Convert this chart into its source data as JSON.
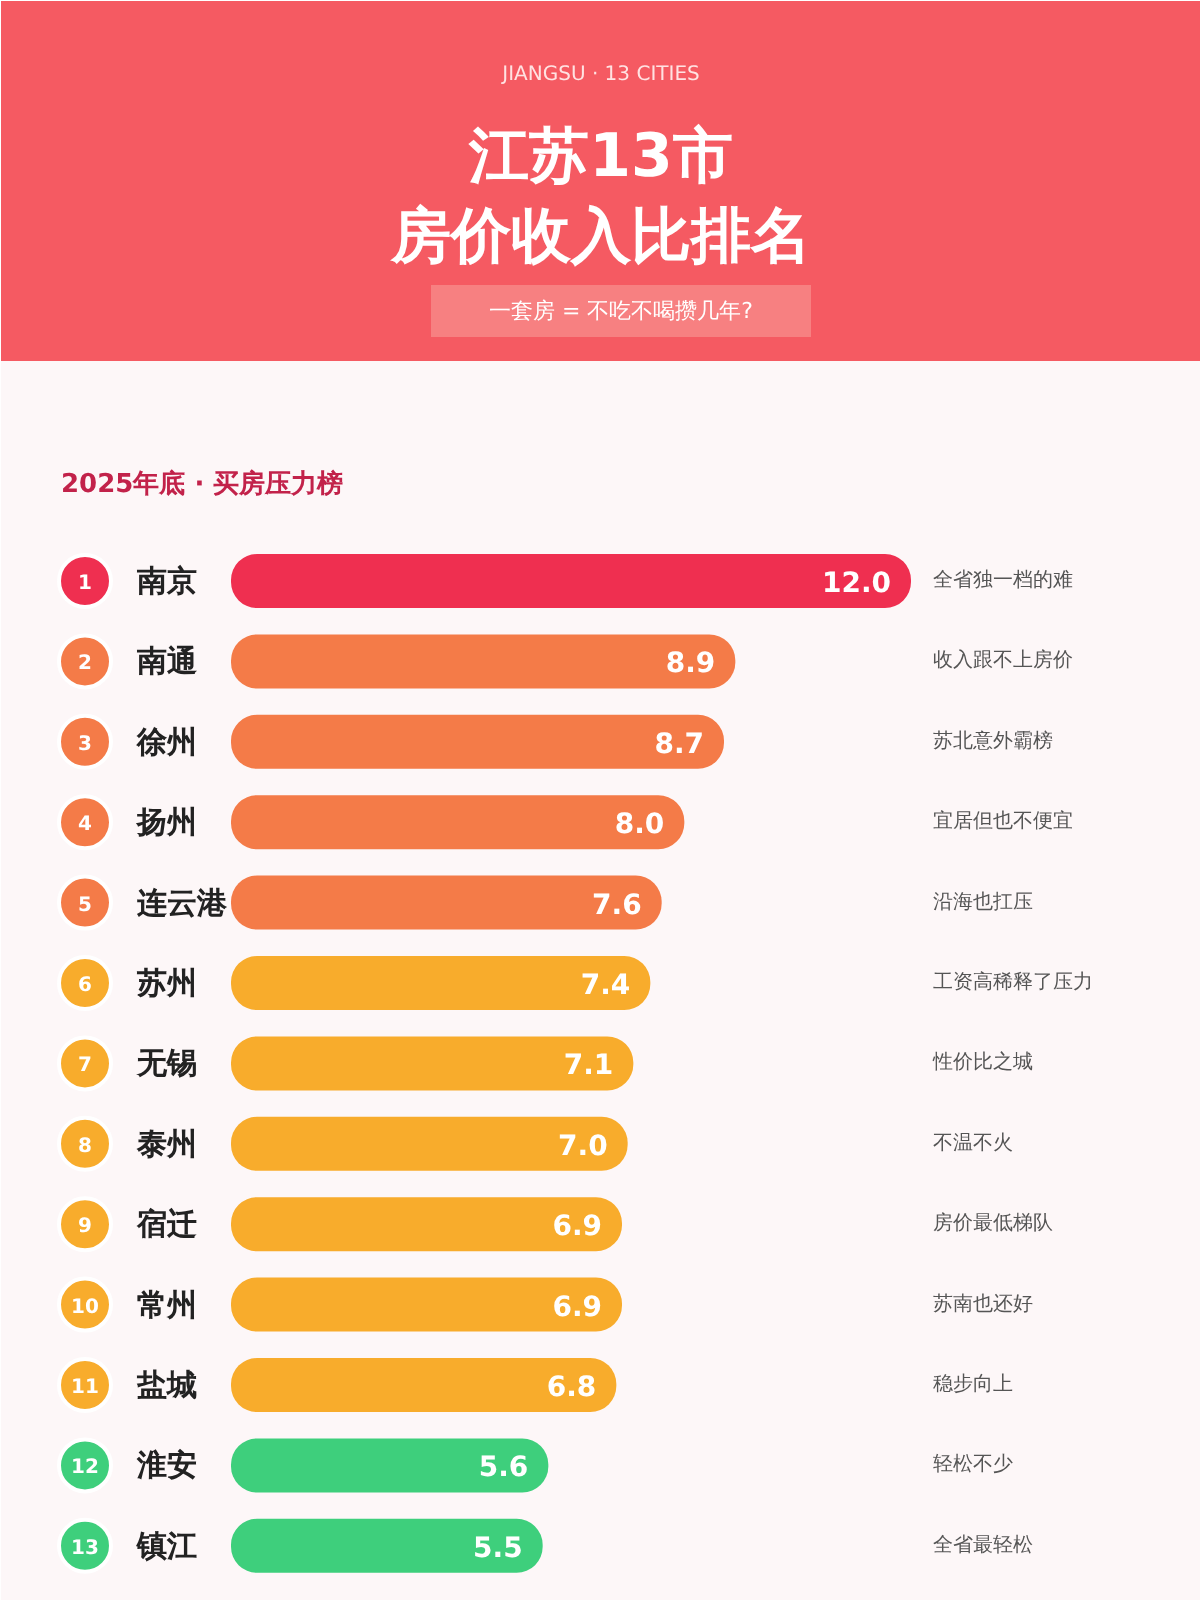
{
  "chart_data": {
    "type": "bar",
    "orientation": "horizontal",
    "title": "江苏13市",
    "subtitle": "一套房 = 不吃不喝攒几年?",
    "categories": [
      "南京",
      "南通",
      "徐州",
      "扬州",
      "连云港",
      "苏州",
      "无锡",
      "泰州",
      "宿迁",
      "常州",
      "盐城",
      "淮安",
      "镇江"
    ],
    "values": [
      12.0,
      8.9,
      8.7,
      8.0,
      7.6,
      7.4,
      7.1,
      7.0,
      6.9,
      6.9,
      6.8,
      5.6,
      5.5
    ],
    "value_labels": [
      "12.0",
      "8.9",
      "8.7",
      "8.0",
      "7.6",
      "7.4",
      "7.1",
      "7.0",
      "6.9",
      "6.9",
      "6.8",
      "5.6",
      "5.5"
    ],
    "colors": [
      "#ef2f50",
      "#f47b48",
      "#f47b48",
      "#f47b48",
      "#f47b48",
      "#f8ac2c",
      "#f8ac2c",
      "#f8ac2c",
      "#f8ac2c",
      "#f8ac2c",
      "#f8ac2c",
      "#3ecf7c",
      "#3ecf7c"
    ],
    "annotations": [
      "JIANGSU · 13 CITIES",
      "房价收入比排名",
      "2025年底 · 买房压力榜",
      "1",
      "2",
      "3",
      "4",
      "5",
      "6",
      "7",
      "8",
      "9",
      "10",
      "11",
      "12",
      "13",
      "全省独一档的难",
      "收入跟不上房价",
      "苏北意外霸榜",
      "宜居但也不便宜",
      "沿海也扛压",
      "工资高稀释了压力",
      "性价比之城",
      "不温不火",
      "房价最低梯队",
      "苏南也还好",
      "稳步向上",
      "轻松不少",
      "全省最轻松"
    ]
  }
}
